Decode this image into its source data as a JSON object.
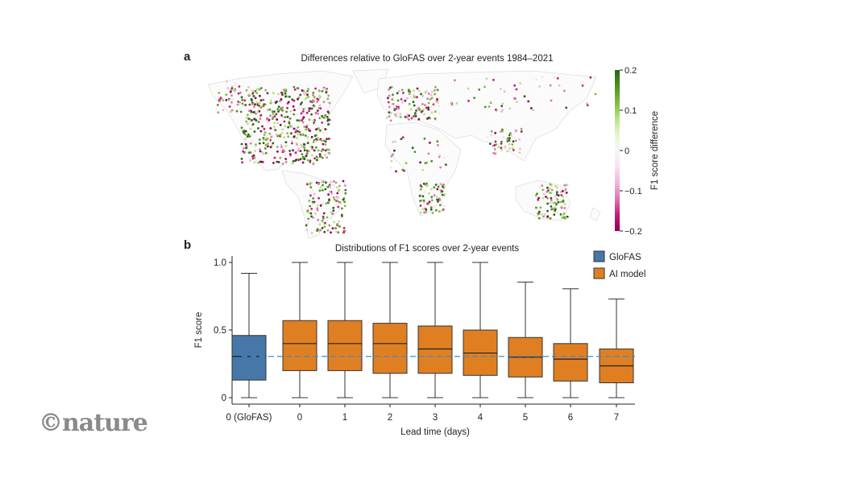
{
  "logo": "©nature",
  "chart_data": [
    {
      "type": "map",
      "panel_label": "a",
      "title": "Differences relative to GloFAS over 2-year events 1984–2021",
      "colorbar": {
        "label": "F1 score difference",
        "range": [
          -0.2,
          0.2
        ],
        "ticks": [
          "0.2",
          "0.1",
          "0",
          "−0.1",
          "−0.2"
        ],
        "colors": [
          "#276419",
          "#4d9221",
          "#7fbc41",
          "#b8e186",
          "#e6f5d0",
          "#f7f7f7",
          "#fde0ef",
          "#f1b6da",
          "#de77ae",
          "#c51b7d",
          "#8e0152"
        ]
      }
    },
    {
      "type": "box",
      "panel_label": "b",
      "title": "Distributions of F1 scores over 2-year events",
      "xlabel": "Lead time (days)",
      "ylabel": "F1 score",
      "ylim": [
        0,
        1.0
      ],
      "yticks": [
        {
          "v": 0,
          "label": "0"
        },
        {
          "v": 0.5,
          "label": "0.5"
        },
        {
          "v": 1.0,
          "label": "1.0"
        }
      ],
      "reference_line": 0.305,
      "legend": {
        "position": "top-right",
        "items": [
          {
            "name": "GloFAS",
            "color": "#4677a8"
          },
          {
            "name": "AI model",
            "color": "#e07f22"
          }
        ]
      },
      "categories": [
        "0 (GloFAS)",
        "0",
        "1",
        "2",
        "3",
        "4",
        "5",
        "6",
        "7"
      ],
      "series": [
        {
          "name": "GloFAS",
          "boxes": [
            {
              "cat": "0 (GloFAS)",
              "min": 0,
              "q1": 0.13,
              "median": 0.305,
              "q3": 0.46,
              "max": 0.92
            }
          ]
        },
        {
          "name": "AI model",
          "boxes": [
            {
              "cat": "0",
              "min": 0,
              "q1": 0.2,
              "median": 0.4,
              "q3": 0.57,
              "max": 1.0
            },
            {
              "cat": "1",
              "min": 0,
              "q1": 0.2,
              "median": 0.4,
              "q3": 0.57,
              "max": 1.0
            },
            {
              "cat": "2",
              "min": 0,
              "q1": 0.18,
              "median": 0.4,
              "q3": 0.55,
              "max": 1.0
            },
            {
              "cat": "3",
              "min": 0,
              "q1": 0.18,
              "median": 0.36,
              "q3": 0.53,
              "max": 1.0
            },
            {
              "cat": "4",
              "min": 0,
              "q1": 0.165,
              "median": 0.33,
              "q3": 0.5,
              "max": 1.0
            },
            {
              "cat": "5",
              "min": 0,
              "q1": 0.153,
              "median": 0.3,
              "q3": 0.445,
              "max": 0.855
            },
            {
              "cat": "6",
              "min": 0,
              "q1": 0.123,
              "median": 0.285,
              "q3": 0.4,
              "max": 0.805
            },
            {
              "cat": "7",
              "min": 0,
              "q1": 0.11,
              "median": 0.235,
              "q3": 0.36,
              "max": 0.73
            }
          ]
        }
      ]
    }
  ]
}
